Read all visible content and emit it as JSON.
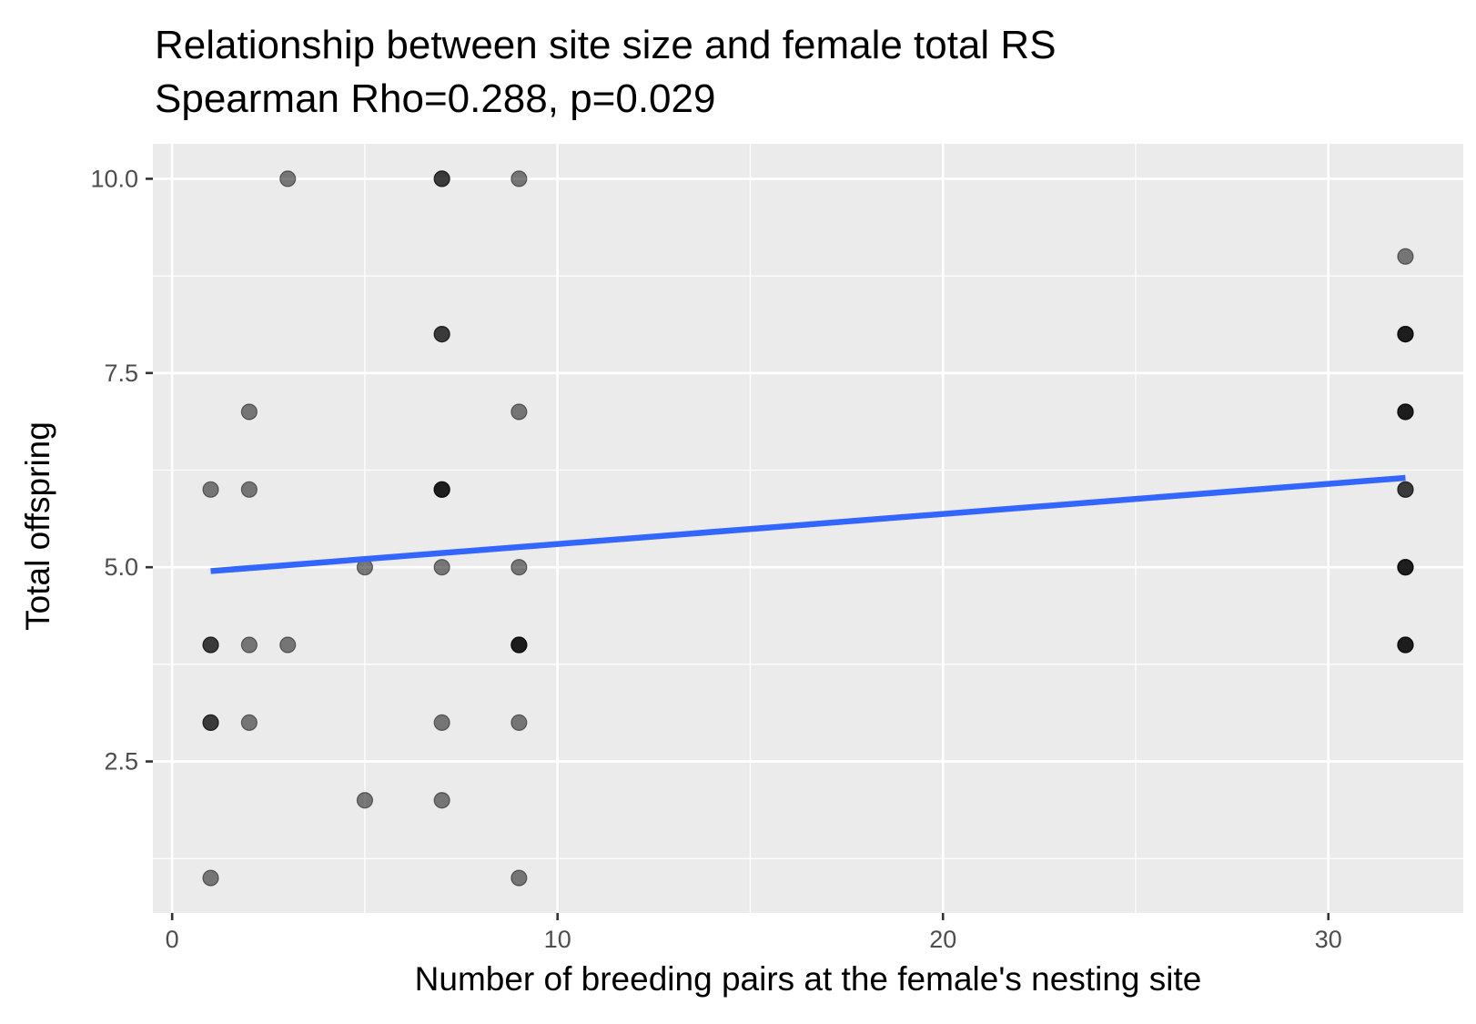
{
  "chart_data": {
    "type": "scatter",
    "title": "Relationship between site size and female total RS",
    "subtitle": "Spearman Rho=0.288, p=0.029",
    "xlabel": "Number of breeding pairs at the female's nesting site",
    "ylabel": "Total offspring",
    "xlim": [
      -0.5,
      33.5
    ],
    "ylim": [
      0.55,
      10.45
    ],
    "x_ticks": [
      0,
      10,
      20,
      30
    ],
    "x_tick_labels": [
      "0",
      "10",
      "20",
      "30"
    ],
    "x_minor_ticks": [
      5,
      15,
      25
    ],
    "y_ticks": [
      2.5,
      5.0,
      7.5,
      10.0
    ],
    "y_tick_labels": [
      "2.5",
      "5.0",
      "7.5",
      "10.0"
    ],
    "y_minor_ticks": [
      1.25,
      3.75,
      6.25,
      8.75
    ],
    "grid": true,
    "legend": "none",
    "colors": {
      "panel_background": "#ebebeb",
      "grid_line": "#ffffff",
      "point_fill": "#000000",
      "point_alpha": 0.5,
      "trend_line": "#3366ff"
    },
    "points": [
      {
        "x": 1,
        "y": 6
      },
      {
        "x": 1,
        "y": 4
      },
      {
        "x": 1,
        "y": 4
      },
      {
        "x": 1,
        "y": 3
      },
      {
        "x": 1,
        "y": 3
      },
      {
        "x": 1,
        "y": 1
      },
      {
        "x": 2,
        "y": 7
      },
      {
        "x": 2,
        "y": 6
      },
      {
        "x": 2,
        "y": 4
      },
      {
        "x": 2,
        "y": 3
      },
      {
        "x": 3,
        "y": 10
      },
      {
        "x": 3,
        "y": 4
      },
      {
        "x": 5,
        "y": 5
      },
      {
        "x": 5,
        "y": 2
      },
      {
        "x": 7,
        "y": 10
      },
      {
        "x": 7,
        "y": 10
      },
      {
        "x": 7,
        "y": 8
      },
      {
        "x": 7,
        "y": 8
      },
      {
        "x": 7,
        "y": 6
      },
      {
        "x": 7,
        "y": 6
      },
      {
        "x": 7,
        "y": 6
      },
      {
        "x": 7,
        "y": 5
      },
      {
        "x": 7,
        "y": 3
      },
      {
        "x": 7,
        "y": 2
      },
      {
        "x": 9,
        "y": 10
      },
      {
        "x": 9,
        "y": 7
      },
      {
        "x": 9,
        "y": 5
      },
      {
        "x": 9,
        "y": 4
      },
      {
        "x": 9,
        "y": 4
      },
      {
        "x": 9,
        "y": 4
      },
      {
        "x": 9,
        "y": 3
      },
      {
        "x": 9,
        "y": 1
      },
      {
        "x": 32,
        "y": 9
      },
      {
        "x": 32,
        "y": 8
      },
      {
        "x": 32,
        "y": 8
      },
      {
        "x": 32,
        "y": 8
      },
      {
        "x": 32,
        "y": 7
      },
      {
        "x": 32,
        "y": 7
      },
      {
        "x": 32,
        "y": 7
      },
      {
        "x": 32,
        "y": 6
      },
      {
        "x": 32,
        "y": 6
      },
      {
        "x": 32,
        "y": 5
      },
      {
        "x": 32,
        "y": 5
      },
      {
        "x": 32,
        "y": 5
      },
      {
        "x": 32,
        "y": 4
      },
      {
        "x": 32,
        "y": 4
      },
      {
        "x": 32,
        "y": 4
      }
    ],
    "trend_line": {
      "x": [
        1,
        32
      ],
      "y": [
        4.95,
        6.15
      ]
    }
  }
}
